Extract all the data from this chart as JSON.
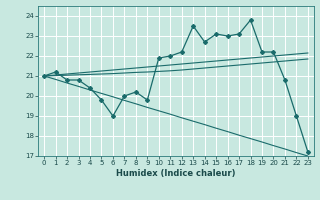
{
  "xlabel": "Humidex (Indice chaleur)",
  "bg_color": "#c8e8e0",
  "grid_color": "#ffffff",
  "line_color": "#1a6b6b",
  "xlim": [
    -0.5,
    23.5
  ],
  "ylim": [
    17,
    24.5
  ],
  "xticks": [
    0,
    1,
    2,
    3,
    4,
    5,
    6,
    7,
    8,
    9,
    10,
    11,
    12,
    13,
    14,
    15,
    16,
    17,
    18,
    19,
    20,
    21,
    22,
    23
  ],
  "yticks": [
    17,
    18,
    19,
    20,
    21,
    22,
    23,
    24
  ],
  "main_y": [
    21.0,
    21.2,
    20.8,
    20.8,
    20.4,
    19.8,
    19.0,
    20.0,
    20.2,
    19.8,
    21.9,
    22.0,
    22.2,
    23.5,
    22.7,
    23.1,
    23.0,
    23.1,
    23.8,
    22.2,
    22.2,
    20.8,
    19.0,
    17.2
  ],
  "trend1_y": [
    21.0,
    21.05,
    21.1,
    21.15,
    21.2,
    21.25,
    21.3,
    21.35,
    21.4,
    21.45,
    21.5,
    21.55,
    21.6,
    21.65,
    21.7,
    21.75,
    21.8,
    21.85,
    21.9,
    21.95,
    22.0,
    22.05,
    22.1,
    22.15
  ],
  "trend2_y": [
    21.0,
    21.02,
    21.04,
    21.06,
    21.08,
    21.1,
    21.12,
    21.15,
    21.18,
    21.2,
    21.23,
    21.26,
    21.3,
    21.35,
    21.4,
    21.45,
    21.5,
    21.55,
    21.6,
    21.65,
    21.7,
    21.75,
    21.8,
    21.85
  ],
  "trend3_y": [
    21.0,
    20.83,
    20.65,
    20.48,
    20.3,
    20.13,
    19.96,
    19.78,
    19.61,
    19.43,
    19.26,
    19.09,
    18.91,
    18.74,
    18.57,
    18.39,
    18.22,
    18.04,
    17.87,
    17.7,
    17.52,
    17.35,
    17.17,
    17.0
  ]
}
